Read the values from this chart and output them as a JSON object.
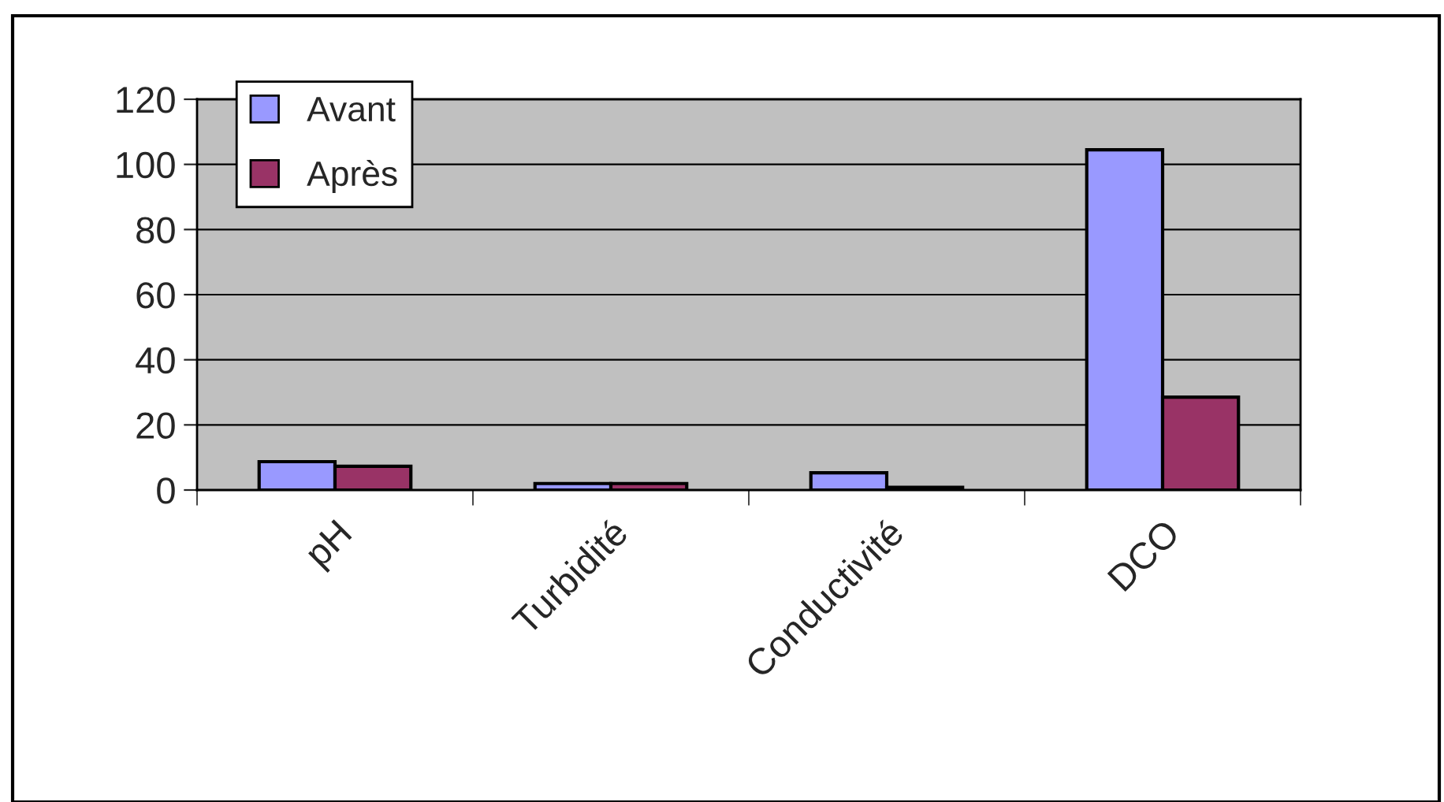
{
  "chart_data": {
    "type": "bar",
    "categories": [
      "pH",
      "Turbidité",
      "Conductivité",
      "DCO"
    ],
    "series": [
      {
        "name": "Avant",
        "color": "#9999ff",
        "values": [
          8.7,
          2,
          5.3,
          104.5
        ]
      },
      {
        "name": "Après",
        "color": "#993366",
        "values": [
          7.3,
          2,
          0.8,
          28.5
        ]
      }
    ],
    "ylim": [
      0,
      120
    ],
    "yticks": [
      0,
      20,
      40,
      60,
      80,
      100,
      120
    ],
    "grid": "y",
    "legend": "top left"
  }
}
